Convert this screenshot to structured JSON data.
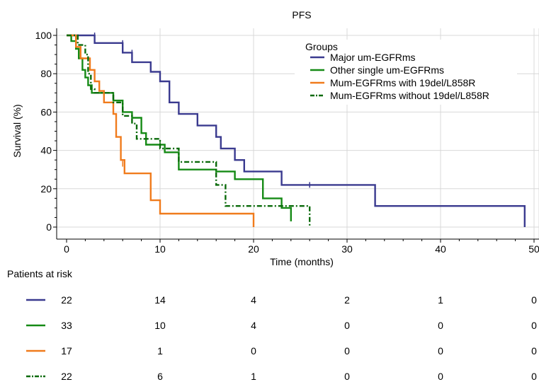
{
  "chart_data": {
    "type": "line",
    "title": "PFS",
    "xlabel": "Time (months)",
    "ylabel": "Survival (%)",
    "xlim": [
      0,
      50
    ],
    "ylim": [
      0,
      100
    ],
    "x_ticks": [
      "0",
      "10",
      "20",
      "30",
      "40",
      "50"
    ],
    "y_ticks": [
      "0",
      "20",
      "40",
      "60",
      "80",
      "100"
    ],
    "grid": true,
    "legend": {
      "title": "Groups",
      "placement": "top-right"
    },
    "series": [
      {
        "name": "Major um-EGFRms",
        "color": "#3a3a8f",
        "dash": "solid",
        "points": [
          [
            0,
            100
          ],
          [
            3,
            100
          ],
          [
            3,
            96
          ],
          [
            6,
            96
          ],
          [
            6,
            91
          ],
          [
            7,
            91
          ],
          [
            7,
            86
          ],
          [
            9,
            86
          ],
          [
            9,
            81
          ],
          [
            10,
            81
          ],
          [
            10,
            76
          ],
          [
            11,
            76
          ],
          [
            11,
            65
          ],
          [
            12,
            65
          ],
          [
            12,
            59
          ],
          [
            14,
            59
          ],
          [
            14,
            53
          ],
          [
            16,
            53
          ],
          [
            16,
            47
          ],
          [
            16.5,
            47
          ],
          [
            16.5,
            41
          ],
          [
            18,
            41
          ],
          [
            18,
            35
          ],
          [
            19,
            35
          ],
          [
            19,
            29
          ],
          [
            23,
            29
          ],
          [
            23,
            22
          ],
          [
            33,
            22
          ],
          [
            33,
            11
          ],
          [
            49,
            11
          ],
          [
            49,
            0
          ]
        ]
      },
      {
        "name": "Other single um-EGFRms",
        "color": "#158a15",
        "dash": "solid",
        "points": [
          [
            0,
            100
          ],
          [
            0.5,
            100
          ],
          [
            0.5,
            97
          ],
          [
            1,
            97
          ],
          [
            1,
            93
          ],
          [
            1.3,
            93
          ],
          [
            1.3,
            88
          ],
          [
            1.7,
            88
          ],
          [
            1.7,
            82
          ],
          [
            2,
            82
          ],
          [
            2,
            78
          ],
          [
            2.3,
            78
          ],
          [
            2.3,
            74
          ],
          [
            2.7,
            74
          ],
          [
            2.7,
            70
          ],
          [
            5,
            70
          ],
          [
            5,
            66
          ],
          [
            6,
            66
          ],
          [
            6,
            60
          ],
          [
            7,
            60
          ],
          [
            7,
            57
          ],
          [
            8,
            57
          ],
          [
            8,
            49
          ],
          [
            8.5,
            49
          ],
          [
            8.5,
            43
          ],
          [
            10.5,
            43
          ],
          [
            10.5,
            39
          ],
          [
            12,
            39
          ],
          [
            12,
            30
          ],
          [
            16,
            30
          ],
          [
            16,
            29
          ],
          [
            18,
            29
          ],
          [
            18,
            25
          ],
          [
            21,
            25
          ],
          [
            21,
            15
          ],
          [
            23,
            15
          ],
          [
            23,
            10
          ],
          [
            24,
            10
          ],
          [
            24,
            3
          ]
        ]
      },
      {
        "name": "Mum-EGFRms with 19del/L858R",
        "color": "#f07b1c",
        "dash": "solid",
        "points": [
          [
            0,
            100
          ],
          [
            1,
            100
          ],
          [
            1,
            94
          ],
          [
            1.5,
            94
          ],
          [
            1.5,
            88
          ],
          [
            2.5,
            88
          ],
          [
            2.5,
            82
          ],
          [
            3,
            82
          ],
          [
            3,
            76
          ],
          [
            3.5,
            76
          ],
          [
            3.5,
            71
          ],
          [
            4,
            71
          ],
          [
            4,
            65
          ],
          [
            5,
            65
          ],
          [
            5,
            59
          ],
          [
            5.3,
            59
          ],
          [
            5.3,
            47
          ],
          [
            5.8,
            47
          ],
          [
            5.8,
            35
          ],
          [
            6.2,
            35
          ],
          [
            6.2,
            28
          ],
          [
            9,
            28
          ],
          [
            9,
            14
          ],
          [
            10,
            14
          ],
          [
            10,
            7
          ],
          [
            20,
            7
          ],
          [
            20,
            0
          ]
        ]
      },
      {
        "name": "Mum-EGFRms without 19del/L858R",
        "color": "#0a6a0a",
        "dash": "dashdot",
        "points": [
          [
            0,
            100
          ],
          [
            1.2,
            100
          ],
          [
            1.2,
            95
          ],
          [
            2,
            95
          ],
          [
            2,
            90
          ],
          [
            2.3,
            90
          ],
          [
            2.3,
            80
          ],
          [
            2.6,
            80
          ],
          [
            2.6,
            72
          ],
          [
            3,
            72
          ],
          [
            3,
            70
          ],
          [
            5,
            70
          ],
          [
            5,
            65
          ],
          [
            6,
            65
          ],
          [
            6,
            58
          ],
          [
            7,
            58
          ],
          [
            7,
            54
          ],
          [
            7.5,
            54
          ],
          [
            7.5,
            46
          ],
          [
            8,
            46
          ],
          [
            8,
            46
          ],
          [
            10,
            46
          ],
          [
            10,
            41
          ],
          [
            12,
            41
          ],
          [
            12,
            34
          ],
          [
            16,
            34
          ],
          [
            16,
            22
          ],
          [
            17,
            22
          ],
          [
            17,
            11
          ],
          [
            26,
            11
          ],
          [
            26,
            0
          ]
        ]
      }
    ],
    "censor_marks": [
      {
        "series": 0,
        "points": [
          [
            3,
            100
          ],
          [
            6,
            96
          ],
          [
            7,
            91
          ],
          [
            26,
            22
          ]
        ]
      },
      {
        "series": 1,
        "points": [
          [
            12,
            32
          ],
          [
            24,
            5
          ]
        ]
      },
      {
        "series": 2,
        "points": [
          [
            6,
            33
          ]
        ]
      },
      {
        "series": 3,
        "points": [
          [
            10,
            44
          ]
        ]
      }
    ],
    "risk_table": {
      "title": "Patients at risk",
      "rows": [
        {
          "color": "#3a3a8f",
          "dash": "solid",
          "values": [
            "22",
            "14",
            "4",
            "2",
            "1",
            "0"
          ]
        },
        {
          "color": "#158a15",
          "dash": "solid",
          "values": [
            "33",
            "10",
            "4",
            "0",
            "0",
            "0"
          ]
        },
        {
          "color": "#f07b1c",
          "dash": "solid",
          "values": [
            "17",
            "1",
            "0",
            "0",
            "0",
            "0"
          ]
        },
        {
          "color": "#0a6a0a",
          "dash": "dashdot",
          "values": [
            "22",
            "6",
            "1",
            "0",
            "0",
            "0"
          ]
        }
      ]
    }
  }
}
